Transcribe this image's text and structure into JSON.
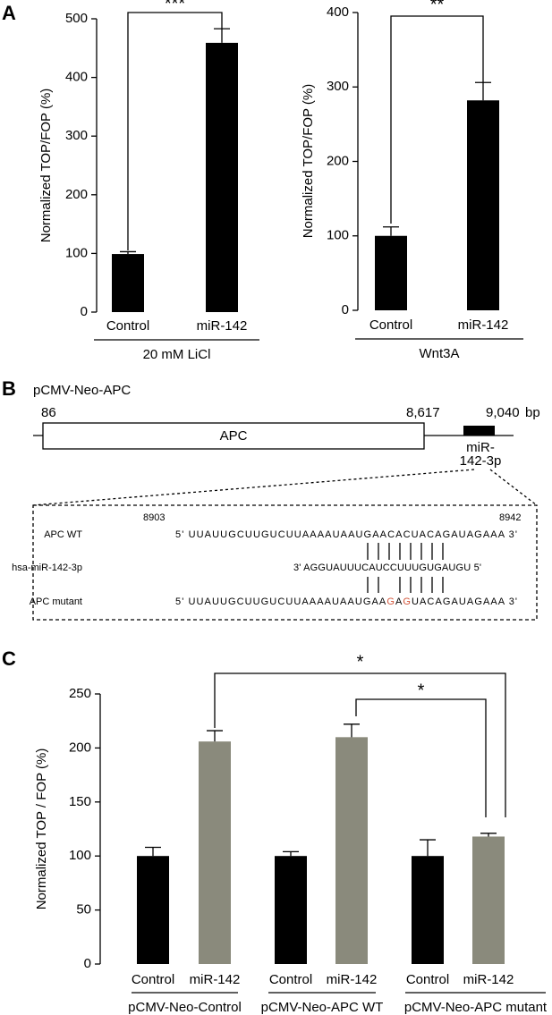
{
  "panel_labels": [
    "A",
    "B",
    "C"
  ],
  "chart_data": [
    {
      "type": "bar",
      "ylabel": "Normalized TOP/FOP (%)",
      "categories": [
        "Control",
        "miR-142"
      ],
      "values": [
        99,
        459
      ],
      "errors": [
        4,
        24
      ],
      "colors": [
        "#000000",
        "#000000"
      ],
      "groups": [
        "20 mM LiCl"
      ],
      "significance": [
        "***"
      ],
      "ylim": [
        0,
        500
      ],
      "yticks": [
        0,
        100,
        200,
        300,
        400,
        500
      ]
    },
    {
      "type": "bar",
      "ylabel": "Normalized TOP/FOP (%)",
      "categories": [
        "Control",
        "miR-142"
      ],
      "values": [
        100,
        282
      ],
      "errors": [
        12,
        24
      ],
      "colors": [
        "#000000",
        "#000000"
      ],
      "groups": [
        "Wnt3A"
      ],
      "significance": [
        "**"
      ],
      "ylim": [
        0,
        400
      ],
      "yticks": [
        0,
        100,
        200,
        300,
        400
      ]
    },
    {
      "type": "bar",
      "ylabel": "Normalized TOP / FOP (%)",
      "categories": [
        "Control",
        "miR-142",
        "Control",
        "miR-142",
        "Control",
        "miR-142"
      ],
      "values": [
        100,
        206,
        100,
        210,
        100,
        118
      ],
      "errors": [
        8,
        10,
        4,
        12,
        15,
        3
      ],
      "colors": [
        "#000000",
        "#8a8a7c",
        "#000000",
        "#8a8a7c",
        "#000000",
        "#8a8a7c"
      ],
      "groups": [
        "pCMV-Neo-Control",
        "pCMV-Neo-APC WT",
        "pCMV-Neo-APC mutant"
      ],
      "significance": [
        "*",
        "*"
      ],
      "ylim": [
        0,
        250
      ],
      "yticks": [
        0,
        50,
        100,
        150,
        200,
        250
      ]
    }
  ],
  "diagram": {
    "label": "pCMV-Neo-APC",
    "positions": [
      "86",
      "8,617",
      "9,040"
    ],
    "unit": "bp",
    "gene": "APC",
    "site": [
      "miR-",
      "142-3p"
    ],
    "box": {
      "start": "8903",
      "end": "8942",
      "highlight_color": "#d2553a",
      "rows": [
        {
          "name": "APC WT",
          "sequence": [
            {
              "text": "5' UUAUUGCUUGUCUUAAAAUAAUGAACACUACAGAUAGAAA 3'"
            }
          ]
        },
        {
          "name": "hsa-miR-142-3p",
          "sequence": [
            {
              "text": "3' AGGUAUUUCAUCCUUUGUGAUGU 5'"
            }
          ]
        },
        {
          "name": "APC mutant",
          "sequence": [
            {
              "text": "5' UUAUUGCUUGUCUUAAAAUAAUGAA"
            },
            {
              "text": "G",
              "highlight": true
            },
            {
              "text": "A"
            },
            {
              "text": "G",
              "highlight": true
            },
            {
              "text": "UACAGAUAGAAA 3'"
            }
          ]
        }
      ]
    }
  }
}
